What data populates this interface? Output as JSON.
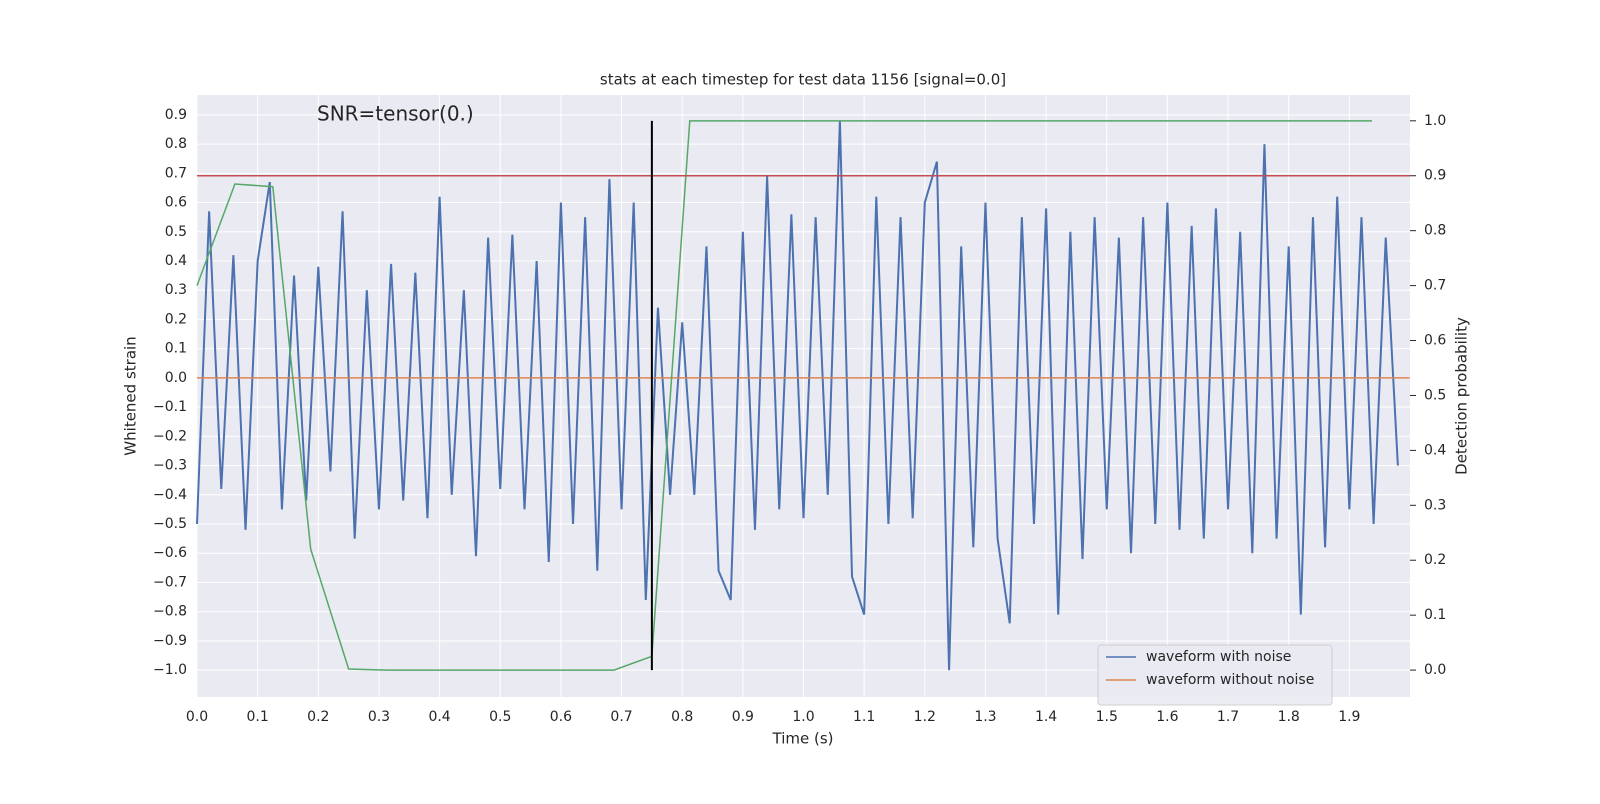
{
  "chart_data": {
    "type": "line",
    "title": "stats at each timestep for test data 1156 [signal=0.0]",
    "annotation": "SNR=tensor(0.)",
    "xlabel": "Time (s)",
    "ylabel": "Whitened strain",
    "y2label": "Detection probability",
    "xlim": [
      0,
      2.0
    ],
    "ylim": [
      -1.092,
      0.968
    ],
    "y2lim": [
      -0.049,
      1.047
    ],
    "xticks": [
      {
        "value": 0,
        "label": "0.0"
      },
      0.1,
      0.2,
      0.3,
      0.4,
      0.5,
      0.6,
      0.7,
      0.8,
      0.9,
      {
        "value": 1,
        "label": "1.0"
      },
      1.1,
      1.2,
      1.3,
      1.4,
      1.5,
      1.6,
      1.7,
      1.8,
      1.9
    ],
    "yticks": [
      {
        "value": -1,
        "label": "−1.0"
      },
      {
        "value": -0.9,
        "label": "−0.9"
      },
      {
        "value": -0.8,
        "label": "−0.8"
      },
      {
        "value": -0.7,
        "label": "−0.7"
      },
      {
        "value": -0.6,
        "label": "−0.6"
      },
      {
        "value": -0.5,
        "label": "−0.5"
      },
      {
        "value": -0.4,
        "label": "−0.4"
      },
      {
        "value": -0.3,
        "label": "−0.3"
      },
      {
        "value": -0.2,
        "label": "−0.2"
      },
      {
        "value": -0.1,
        "label": "−0.1"
      },
      {
        "value": 0,
        "label": "0.0"
      },
      0.1,
      0.2,
      0.3,
      0.4,
      0.5,
      0.6,
      0.7,
      0.8,
      0.9
    ],
    "y2ticks": [
      {
        "value": 0,
        "label": "0.0"
      },
      0.1,
      0.2,
      0.3,
      0.4,
      0.5,
      0.6,
      0.7,
      0.8,
      0.9,
      {
        "value": 1,
        "label": "1.0"
      }
    ],
    "grid": true,
    "legend": "lower right",
    "series": [
      {
        "name": "waveform with noise",
        "color": "#4c72b0",
        "x": [
          0.0,
          0.02,
          0.04,
          0.06,
          0.08,
          0.1,
          0.12,
          0.14,
          0.16,
          0.18,
          0.2,
          0.22,
          0.24,
          0.26,
          0.28,
          0.3,
          0.32,
          0.34,
          0.36,
          0.38,
          0.4,
          0.42,
          0.44,
          0.46,
          0.48,
          0.5,
          0.52,
          0.54,
          0.56,
          0.58,
          0.6,
          0.62,
          0.64,
          0.66,
          0.68,
          0.7,
          0.72,
          0.74,
          0.76,
          0.78,
          0.8,
          0.82,
          0.84,
          0.86,
          0.88,
          0.9,
          0.92,
          0.94,
          0.96,
          0.98,
          1.0,
          1.02,
          1.04,
          1.06,
          1.08,
          1.1,
          1.12,
          1.14,
          1.16,
          1.18,
          1.2,
          1.22,
          1.24,
          1.26,
          1.28,
          1.3,
          1.32,
          1.34,
          1.36,
          1.38,
          1.4,
          1.42,
          1.44,
          1.46,
          1.48,
          1.5,
          1.52,
          1.54,
          1.56,
          1.58,
          1.6,
          1.62,
          1.64,
          1.66,
          1.68,
          1.7,
          1.72,
          1.74,
          1.76,
          1.78,
          1.8,
          1.82,
          1.84,
          1.86,
          1.88,
          1.9,
          1.92,
          1.94,
          1.96,
          1.98
        ],
        "values": [
          -0.5,
          0.57,
          -0.38,
          0.42,
          -0.52,
          0.4,
          0.67,
          -0.45,
          0.35,
          -0.42,
          0.38,
          -0.32,
          0.57,
          -0.55,
          0.3,
          -0.45,
          0.39,
          -0.42,
          0.36,
          -0.48,
          0.62,
          -0.4,
          0.3,
          -0.61,
          0.48,
          -0.38,
          0.49,
          -0.45,
          0.4,
          -0.63,
          0.6,
          -0.5,
          0.55,
          -0.66,
          0.68,
          -0.45,
          0.6,
          -0.76,
          0.24,
          -0.4,
          0.19,
          -0.4,
          0.45,
          -0.66,
          -0.76,
          0.5,
          -0.52,
          0.69,
          -0.45,
          0.56,
          -0.48,
          0.55,
          -0.4,
          0.88,
          -0.68,
          -0.81,
          0.62,
          -0.5,
          0.55,
          -0.48,
          0.6,
          0.74,
          -1.0,
          0.45,
          -0.58,
          0.6,
          -0.55,
          -0.84,
          0.55,
          -0.5,
          0.58,
          -0.81,
          0.5,
          -0.62,
          0.55,
          -0.45,
          0.48,
          -0.6,
          0.55,
          -0.5,
          0.6,
          -0.52,
          0.52,
          -0.55,
          0.58,
          -0.45,
          0.5,
          -0.6,
          0.8,
          -0.55,
          0.45,
          -0.81,
          0.55,
          -0.58,
          0.62,
          -0.45,
          0.55,
          -0.5,
          0.48,
          -0.3
        ]
      },
      {
        "name": "waveform without noise",
        "color": "#dd8452",
        "x": [
          0,
          1.9995
        ],
        "values": [
          0,
          0
        ]
      },
      {
        "color": "#55a868",
        "axis": "y2",
        "x": [
          0,
          0.0625,
          0.125,
          0.1875,
          0.25,
          0.3125,
          0.375,
          0.4375,
          0.5,
          0.5625,
          0.625,
          0.6875,
          0.75,
          0.8125,
          0.875,
          0.9375,
          1,
          1.0625,
          1.125,
          1.1875,
          1.25,
          1.3125,
          1.375,
          1.4375,
          1.5,
          1.5625,
          1.625,
          1.6875,
          1.75,
          1.8125,
          1.875,
          1.9375
        ],
        "values": [
          0.7,
          0.885,
          0.88,
          0.22,
          0.002,
          0,
          0,
          0,
          0,
          0,
          0,
          0,
          0.025,
          1,
          1,
          1,
          1,
          1,
          1,
          1,
          1,
          1,
          1,
          1,
          1,
          1,
          1,
          1,
          1,
          1,
          1,
          1
        ]
      }
    ],
    "threshold": {
      "value": 0.9,
      "axis": "y2",
      "color": "#c44e52"
    },
    "vline": {
      "x": 0.75,
      "ymin": 0,
      "ymax": 1,
      "axis": "y2",
      "color": "#000000"
    }
  }
}
